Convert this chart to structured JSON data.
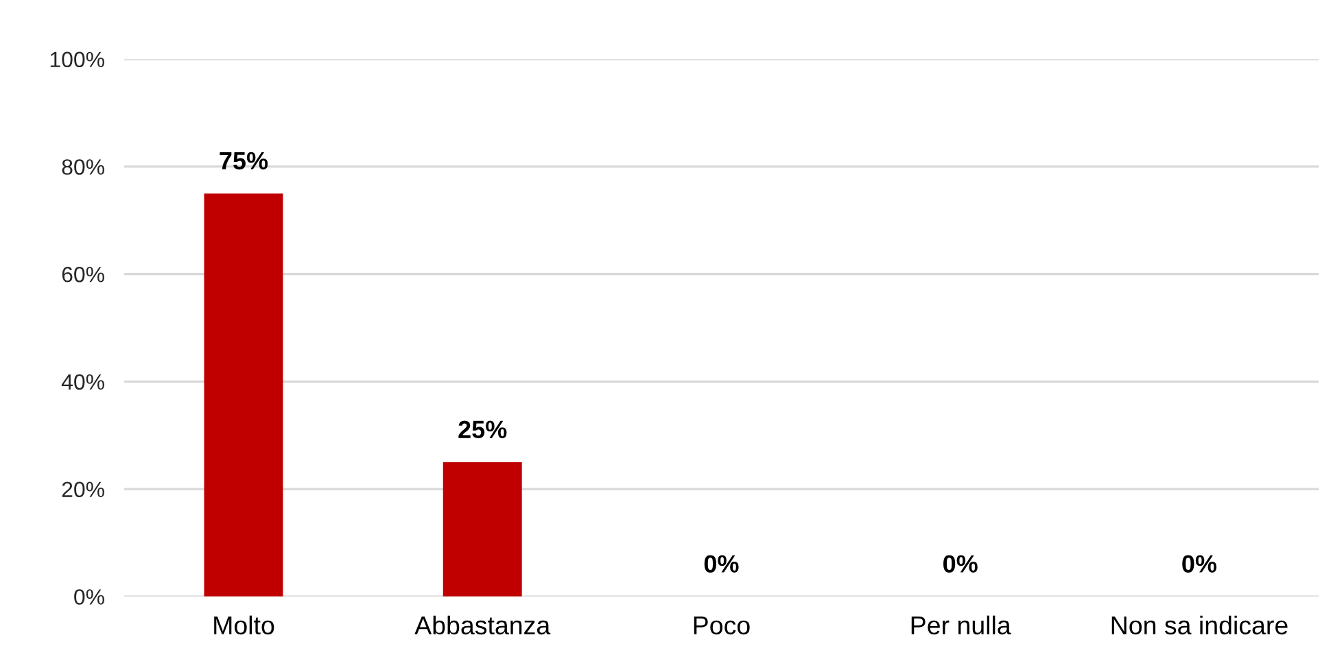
{
  "chart_data": {
    "type": "bar",
    "categories": [
      "Molto",
      "Abbastanza",
      "Poco",
      "Per nulla",
      "Non sa indicare"
    ],
    "values": [
      75,
      25,
      0,
      0,
      0
    ],
    "value_labels": [
      "75%",
      "25%",
      "0%",
      "0%",
      "0%"
    ],
    "color": "#c00000",
    "ylim": [
      0,
      100
    ],
    "yticks": [
      {
        "value": 0,
        "label": "0%"
      },
      {
        "value": 20,
        "label": "20%"
      },
      {
        "value": 40,
        "label": "40%"
      },
      {
        "value": 60,
        "label": "60%"
      },
      {
        "value": 80,
        "label": "80%"
      },
      {
        "value": 100,
        "label": "100%"
      }
    ],
    "grid": "y",
    "legend": false
  }
}
